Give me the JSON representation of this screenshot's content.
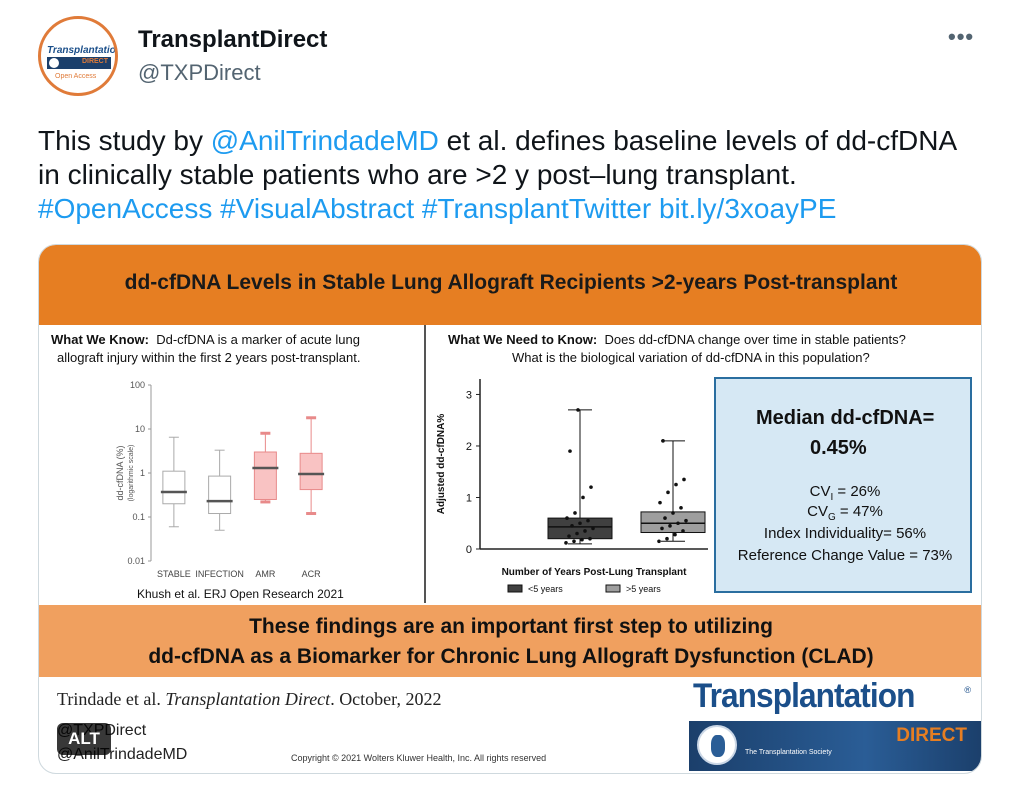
{
  "author": {
    "display_name": "TransplantDirect",
    "handle": "@TXPDirect",
    "avatar_icon": "transplantation-direct-logo",
    "avatar_logo_text": "Transplantation",
    "avatar_logo_band": "DIRECT",
    "avatar_logo_sub": "Open Access"
  },
  "more_button": "•••",
  "tweet": {
    "part1": "This study by ",
    "mention": "@AnilTrindadeMD",
    "part2": " et al. defines baseline levels of dd-cfDNA in clinically stable patients who are >2 y post–lung transplant.",
    "hashtag1": "#OpenAccess",
    "hashtag2": "#VisualAbstract",
    "hashtag3": "#TransplantTwitter",
    "link": "bit.ly/3xoayPE"
  },
  "colors": {
    "link": "#1d9bf0",
    "banner": "#e67e22",
    "findings": "#f0a05f",
    "stats_box": "#d6e8f4",
    "box_dark": "#404040",
    "box_light": "#9e9e9e",
    "box_pink": "#f9c3c3",
    "box_pink_line": "#e88a8a"
  },
  "abstract": {
    "title": "dd-cfDNA Levels in Stable Lung Allograft Recipients >2-years Post-transplant",
    "know_label": "What We Know:",
    "know_text_1": "Dd-cfDNA is a marker of acute lung",
    "know_text_2": "allograft injury within the first 2 years post-transplant.",
    "need_label": "What We Need to Know:",
    "need_text_1": "Does dd-cfDNA change over time in stable patients?",
    "need_text_2": "What is the biological variation of dd-cfDNA in this population?",
    "left_source": "Khush et al. ERJ Open Research 2021",
    "stats_title": "Median dd-cfDNA=",
    "stats_value": "0.45%",
    "cvi_prefix": "CV",
    "cvi_sub": "I",
    "cvi_value": " = 26%",
    "cvg_prefix": "CV",
    "cvg_sub": "G",
    "cvg_value": " = 47%",
    "index_individuality": "Index Individuality= 56%",
    "reference_change": "Reference Change Value = 73%",
    "findings_1": "These findings are an important first step to utilizing",
    "findings_2": "dd-cfDNA as a Biomarker for Chronic Lung Allograft Dysfunction (CLAD)",
    "citation_author": "Trindade et al. ",
    "citation_journal": "Transplantation Direct",
    "citation_date": ". October, 2022",
    "handle_1": "@TXPDirect",
    "handle_2": "@AnilTrindadeMD",
    "copyright": "Copyright © 2021  Wolters Kluwer Health, Inc. All rights reserved",
    "brand_word": "Transplantation",
    "brand_reg": "®",
    "brand_direct": "DIRECT",
    "brand_society": "The Transplantation Society",
    "alt_badge": "ALT"
  },
  "chart_data": [
    {
      "type": "box",
      "ylabel": "dd-cfDNA (%)",
      "ylabel2": "(logarithmic scale)",
      "yscale": "log",
      "ylim": [
        0.01,
        100
      ],
      "yticks": [
        "100",
        "10",
        "1",
        "0.1",
        "0.01"
      ],
      "categories": [
        "STABLE",
        "INFECTION",
        "AMR",
        "ACR"
      ],
      "boxes": [
        {
          "min": 0.06,
          "q1": 0.2,
          "median": 0.37,
          "q3": 1.1,
          "max": 6.5,
          "color": "light"
        },
        {
          "min": 0.05,
          "q1": 0.12,
          "median": 0.23,
          "q3": 0.85,
          "max": 3.3,
          "color": "light"
        },
        {
          "min": 0.22,
          "q1": 0.25,
          "median": 1.3,
          "q3": 3.0,
          "max": 8.0,
          "color": "pink"
        },
        {
          "min": 0.12,
          "q1": 0.42,
          "median": 0.95,
          "q3": 2.8,
          "max": 18.0,
          "color": "pink"
        }
      ]
    },
    {
      "type": "box",
      "xlabel": "Number of Years Post-Lung Transplant",
      "ylabel": "Adjusted dd-cfDNA%",
      "ylim": [
        0,
        3.3
      ],
      "yticks": [
        "3",
        "2",
        "1",
        "0"
      ],
      "series": [
        {
          "name": "<5 years",
          "min": 0.1,
          "q1": 0.2,
          "median": 0.43,
          "q3": 0.6,
          "max": 2.7,
          "color": "dark",
          "points": [
            0.12,
            0.15,
            0.18,
            0.2,
            0.25,
            0.3,
            0.35,
            0.4,
            0.45,
            0.5,
            0.55,
            0.6,
            0.7,
            1.0,
            1.2,
            1.9,
            2.7
          ]
        },
        {
          "name": ">5 years",
          "min": 0.15,
          "q1": 0.32,
          "median": 0.5,
          "q3": 0.72,
          "max": 2.1,
          "color": "light",
          "points": [
            0.15,
            0.2,
            0.28,
            0.35,
            0.4,
            0.45,
            0.5,
            0.55,
            0.6,
            0.7,
            0.8,
            0.9,
            1.1,
            1.25,
            1.35,
            2.1
          ]
        }
      ]
    }
  ]
}
